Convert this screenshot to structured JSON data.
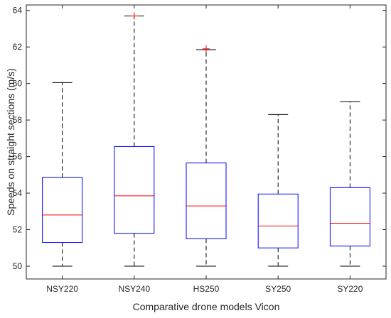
{
  "chart_data": {
    "type": "box",
    "xlabel": "Comparative drone models Vicon",
    "ylabel": "Speeds on straight sections (m/s)",
    "ylim": [
      49.3,
      64.3
    ],
    "yticks": [
      50,
      52,
      54,
      56,
      58,
      60,
      62,
      64
    ],
    "grid": false,
    "categories": [
      "NSY220",
      "NSY240",
      "HS250",
      "SY250",
      "SY220"
    ],
    "boxes": [
      {
        "category": "NSY220",
        "min": 50.0,
        "q1": 51.3,
        "median": 52.8,
        "q3": 54.85,
        "max": 60.05,
        "outliers": []
      },
      {
        "category": "NSY240",
        "min": 50.0,
        "q1": 51.8,
        "median": 53.85,
        "q3": 56.55,
        "max": 63.7,
        "outliers": [
          63.7
        ]
      },
      {
        "category": "HS250",
        "min": 50.0,
        "q1": 51.5,
        "median": 53.3,
        "q3": 55.65,
        "max": 61.85,
        "outliers": [
          61.9
        ]
      },
      {
        "category": "SY250",
        "min": 50.0,
        "q1": 51.0,
        "median": 52.2,
        "q3": 53.95,
        "max": 58.3,
        "outliers": []
      },
      {
        "category": "SY220",
        "min": 50.0,
        "q1": 51.1,
        "median": 52.35,
        "q3": 54.3,
        "max": 59.0,
        "outliers": []
      }
    ],
    "colors": {
      "box": "#0000ff",
      "median": "#ff0000",
      "whisker": "#000000",
      "outlier": "#ff0000",
      "axis": "#262626"
    }
  }
}
